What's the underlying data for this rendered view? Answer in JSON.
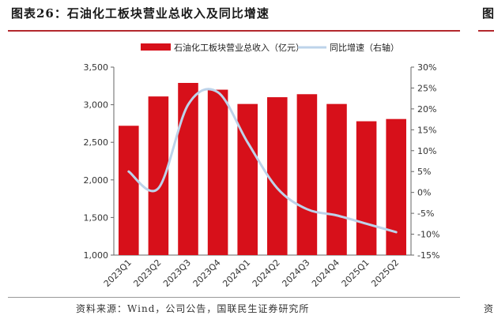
{
  "header": {
    "title": "图表26：石油化工板块营业总收入及同比增速",
    "right_fragment": "图"
  },
  "footer": {
    "source": "资料来源：Wind，公司公告，国联民生证券研究所",
    "right_fragment": "资"
  },
  "colors": {
    "bar": "#d7101a",
    "line": "#bdd3ea",
    "accent_rule": "#b3282d"
  },
  "chart_data": {
    "type": "bar",
    "categories": [
      "2023Q1",
      "2023Q2",
      "2023Q3",
      "2023Q4",
      "2024Q1",
      "2024Q2",
      "2024Q3",
      "2024Q4",
      "2025Q1",
      "2025Q2"
    ],
    "series": [
      {
        "name": "石油化工板块营业总收入（亿元）",
        "type": "bar",
        "axis": "left",
        "values": [
          2720,
          3110,
          3290,
          3200,
          3010,
          3100,
          3140,
          3010,
          2780,
          2810
        ]
      },
      {
        "name": "同比增速（右轴）",
        "type": "line",
        "axis": "right",
        "values": [
          5,
          1,
          21,
          24,
          12,
          1,
          -4,
          -5.5,
          -7.5,
          -9.5
        ]
      }
    ],
    "ylim_left": [
      1000,
      3500
    ],
    "yticks_left": [
      "1,000",
      "1,500",
      "2,000",
      "2,500",
      "3,000",
      "3,500"
    ],
    "ylim_right": [
      -15,
      30
    ],
    "yticks_right": [
      "-15%",
      "-10%",
      "-5%",
      "0%",
      "5%",
      "10%",
      "15%",
      "20%",
      "25%",
      "30%"
    ],
    "legend_position": "top-center",
    "grid": false
  }
}
